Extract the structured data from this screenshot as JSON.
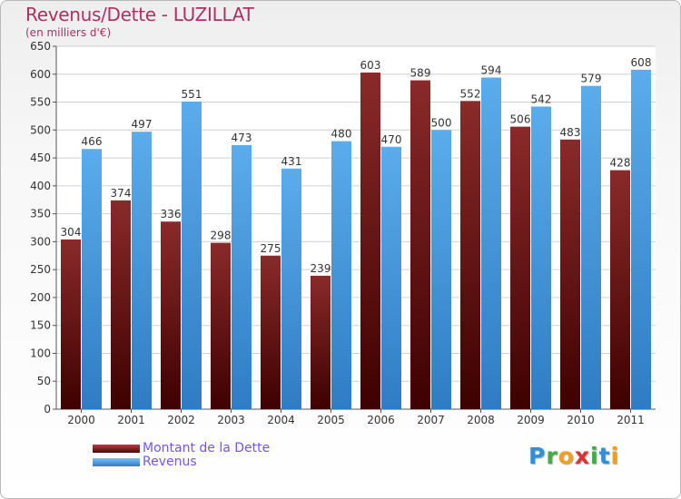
{
  "chart_data": {
    "type": "bar",
    "title": "Revenus/Dette - LUZILLAT",
    "subtitle": "(en milliers d'€)",
    "categories": [
      "2000",
      "2001",
      "2002",
      "2003",
      "2004",
      "2005",
      "2006",
      "2007",
      "2008",
      "2009",
      "2010",
      "2011"
    ],
    "series": [
      {
        "name": "Montant de la Dette",
        "values": [
          304,
          374,
          336,
          298,
          275,
          239,
          603,
          589,
          552,
          506,
          483,
          428
        ],
        "color": "#7a1c1c"
      },
      {
        "name": "Revenus",
        "values": [
          466,
          497,
          551,
          473,
          431,
          480,
          470,
          500,
          594,
          542,
          579,
          608
        ],
        "color": "#4f9fe3"
      }
    ],
    "ylim": [
      0,
      650
    ],
    "yticks": [
      0,
      50,
      100,
      150,
      200,
      250,
      300,
      350,
      400,
      450,
      500,
      550,
      600,
      650
    ],
    "grid": true,
    "legend": "bottom-left"
  },
  "logo": {
    "letters": [
      {
        "ch": "P",
        "color": "#2f8fd8"
      },
      {
        "ch": "r",
        "color": "#3fae3f"
      },
      {
        "ch": "o",
        "color": "#f0a020"
      },
      {
        "ch": "x",
        "color": "#e03030"
      },
      {
        "ch": "i",
        "color": "#3fae3f"
      },
      {
        "ch": "t",
        "color": "#2f8fd8"
      },
      {
        "ch": "i",
        "color": "#f0a020"
      }
    ]
  }
}
